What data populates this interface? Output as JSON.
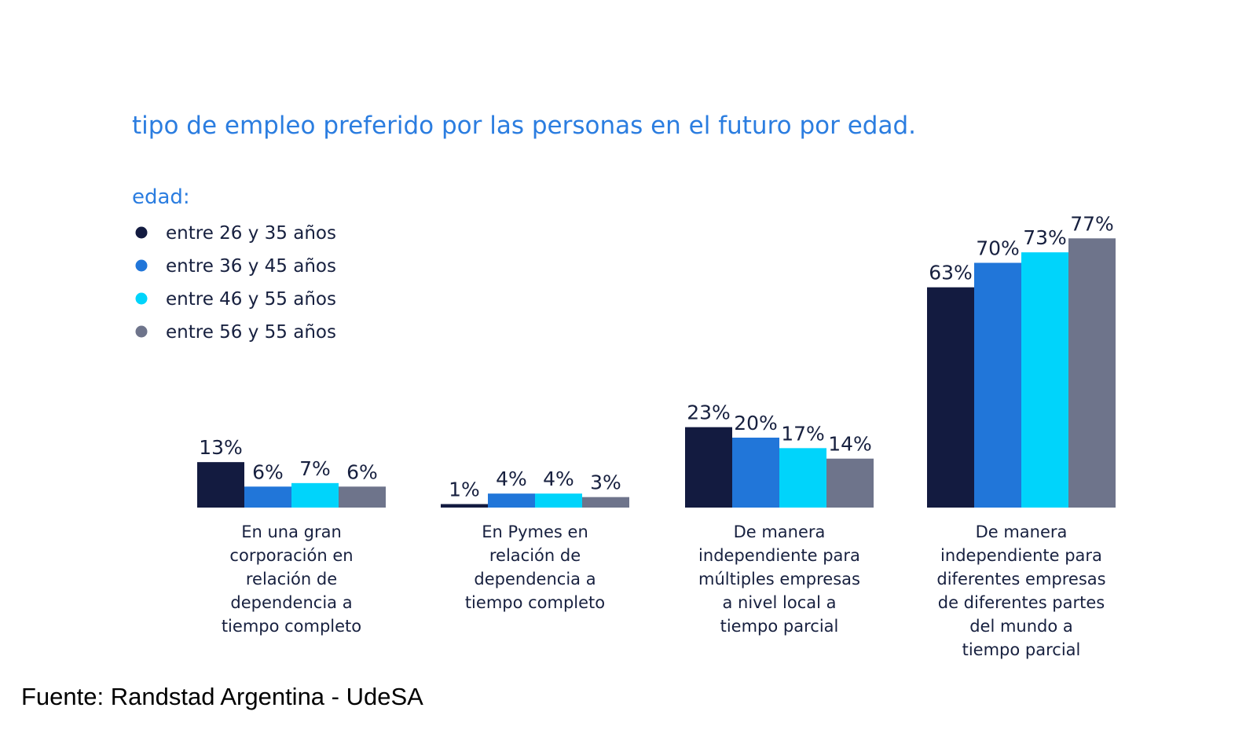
{
  "source": "Fuente: Randstad Argentina - UdeSA",
  "chart_data": {
    "type": "bar",
    "title": "tipo de empleo preferido por las personas en el futuro por edad.",
    "legend_title": "edad:",
    "legend_position": "top-left",
    "grid": false,
    "ylim": [
      0,
      80
    ],
    "categories": [
      [
        "En una gran",
        "corporación en",
        "relación de",
        "dependencia a",
        "tiempo completo"
      ],
      [
        "En Pymes en",
        "relación de",
        "dependencia a",
        "tiempo completo"
      ],
      [
        "De manera",
        "independiente para",
        "múltiples empresas",
        "a nivel local a",
        "tiempo parcial"
      ],
      [
        "De manera",
        "independiente para",
        "diferentes empresas",
        "de diferentes partes",
        "del mundo a",
        "tiempo parcial"
      ]
    ],
    "series": [
      {
        "name": "entre 26 y 35 años",
        "color": "#131b40",
        "values": [
          13,
          1,
          23,
          63
        ],
        "labels": [
          "13%",
          "1%",
          "23%",
          "63%"
        ]
      },
      {
        "name": "entre 36 y 45 años",
        "color": "#2176d9",
        "values": [
          6,
          4,
          20,
          70
        ],
        "labels": [
          "6%",
          "4%",
          "20%",
          "70%"
        ]
      },
      {
        "name": "entre 46 y 55 años",
        "color": "#00d4fb",
        "values": [
          7,
          4,
          17,
          73
        ],
        "labels": [
          "7%",
          "4%",
          "17%",
          "73%"
        ]
      },
      {
        "name": "entre 56 y 55 años",
        "color": "#6e748b",
        "values": [
          6,
          3,
          14,
          77
        ],
        "labels": [
          "6%",
          "3%",
          "14%",
          "77%"
        ]
      }
    ]
  }
}
